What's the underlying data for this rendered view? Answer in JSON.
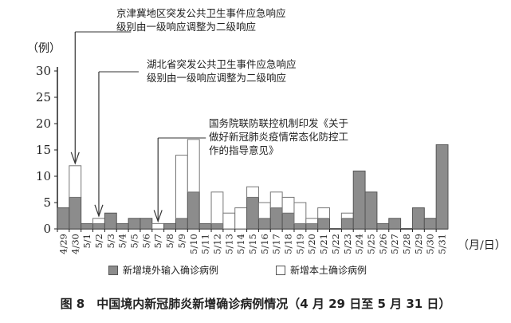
{
  "chart_data": {
    "type": "bar",
    "stacked": true,
    "ylabel": "（例）",
    "xlabel": "（月/日）",
    "ylim": [
      0,
      30
    ],
    "yticks": [
      0,
      5,
      10,
      15,
      20,
      25,
      30
    ],
    "categories": [
      "4/29",
      "4/30",
      "5/1",
      "5/2",
      "5/3",
      "5/4",
      "5/5",
      "5/6",
      "5/7",
      "5/8",
      "5/9",
      "5/10",
      "5/11",
      "5/12",
      "5/13",
      "5/14",
      "5/15",
      "5/16",
      "5/17",
      "5/18",
      "5/19",
      "5/20",
      "5/21",
      "5/22",
      "5/23",
      "5/24",
      "5/25",
      "5/26",
      "5/27",
      "5/28",
      "5/29",
      "5/30",
      "5/31"
    ],
    "series": [
      {
        "name": "新增境外输入确诊病例",
        "color": "#8c8c8c",
        "values": [
          4,
          6,
          1,
          1,
          3,
          1,
          2,
          2,
          0,
          1,
          2,
          7,
          1,
          1,
          0,
          0,
          6,
          2,
          4,
          3,
          1,
          1,
          2,
          0,
          2,
          11,
          7,
          1,
          2,
          0,
          4,
          2,
          16
        ]
      },
      {
        "name": "新增本土确诊病例",
        "color": "#ffffff",
        "values": [
          0,
          6,
          0,
          1,
          0,
          0,
          0,
          0,
          1,
          0,
          12,
          10,
          0,
          6,
          3,
          4,
          2,
          3,
          3,
          3,
          4,
          1,
          2,
          0,
          1,
          0,
          0,
          0,
          0,
          0,
          0,
          0,
          0
        ]
      }
    ],
    "legend": "bottom",
    "grid": false,
    "annotations": [
      {
        "date": "4/30",
        "text": [
          "京津冀地区突发公共卫生事件应急响应",
          "级别由一级响应调整为二级响应"
        ]
      },
      {
        "date": "5/2",
        "text": [
          "湖北省突发公共卫生事件应急响应",
          "级别由一级响应调整为二级响应"
        ]
      },
      {
        "date": "5/7",
        "text": [
          "国务院联防联控机制印发《关于",
          "做好新冠肺炎疫情常态化防控工",
          "作的指导意见》"
        ]
      }
    ],
    "caption": "图 8　中国境内新冠肺炎新增确诊病例情况（4 月 29 日至 5 月 31 日）"
  }
}
